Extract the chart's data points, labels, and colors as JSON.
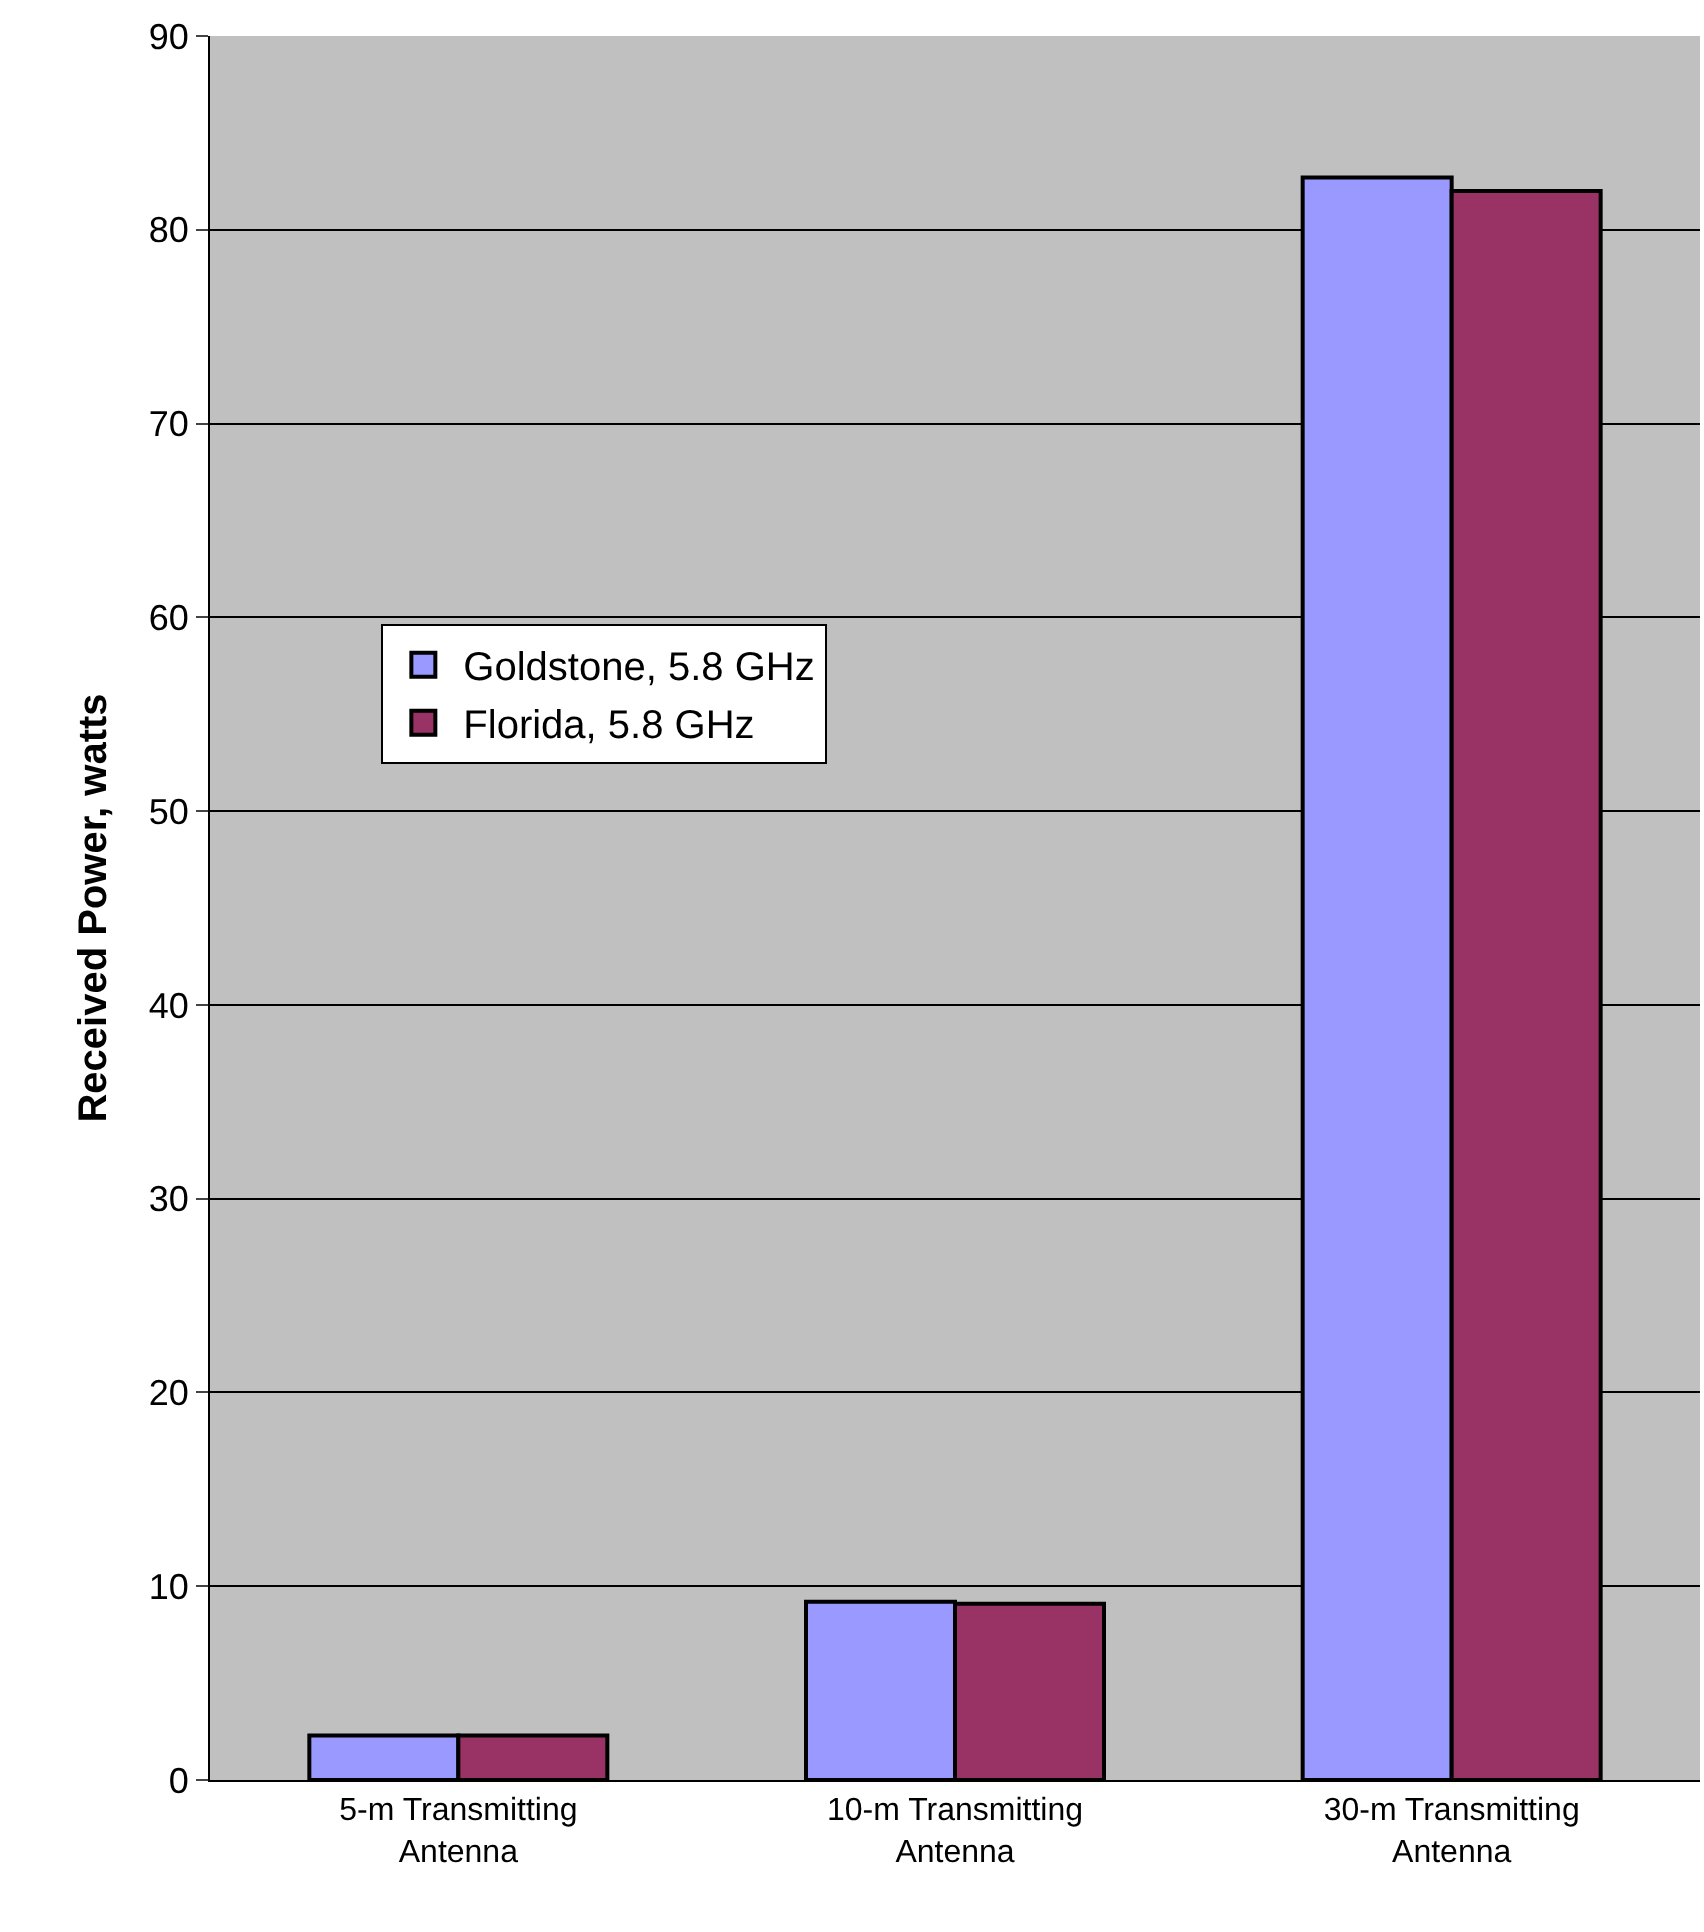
{
  "chart_data": {
    "type": "bar",
    "ylabel": "Received Power, watts",
    "categories": [
      "5-m Transmitting Antenna",
      "10-m Transmitting Antenna",
      "30-m Transmitting Antenna"
    ],
    "series": [
      {
        "name": "Goldstone, 5.8 GHz",
        "color": "#9999ff",
        "values": [
          2.3,
          9.2,
          82.7
        ]
      },
      {
        "name": "Florida, 5.8 GHz",
        "color": "#993366",
        "values": [
          2.3,
          9.1,
          82.0
        ]
      }
    ],
    "ylim": [
      0,
      90
    ],
    "yticks": [
      0,
      10,
      20,
      30,
      40,
      50,
      60,
      70,
      80,
      90
    ],
    "grid": "y",
    "legend": "center left"
  }
}
